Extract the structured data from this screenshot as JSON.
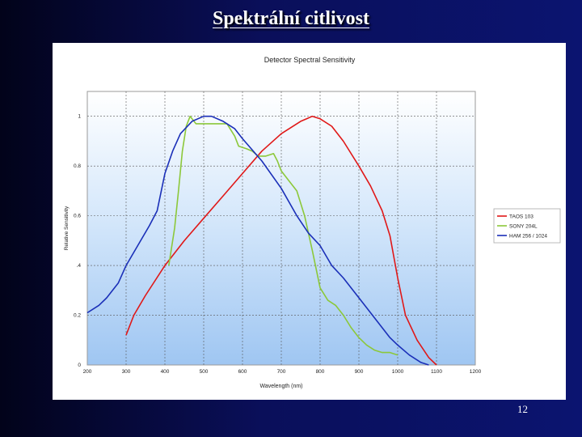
{
  "slide": {
    "title": "Spektrální citlivost",
    "page_number": "12"
  },
  "chart_data": {
    "type": "line",
    "title": "Detector Spectral Sensitivity",
    "xlabel": "Wavelength (nm)",
    "ylabel": "Relative Sensitivity",
    "xlim": [
      200,
      1200
    ],
    "ylim": [
      0,
      1.1
    ],
    "xticks": [
      200,
      300,
      400,
      500,
      600,
      700,
      800,
      900,
      1000,
      1100,
      1200
    ],
    "yticks": [
      0,
      0.2,
      0.4,
      0.6,
      0.8,
      1.0
    ],
    "ytick_labels": [
      "0",
      "0.2",
      ".4",
      "0.6",
      "0.8",
      "1"
    ],
    "grid": true,
    "legend_position": "right",
    "series": [
      {
        "name": "TAOS 103",
        "color": "#e01818",
        "points": [
          [
            300,
            0.12
          ],
          [
            320,
            0.2
          ],
          [
            350,
            0.28
          ],
          [
            400,
            0.4
          ],
          [
            450,
            0.5
          ],
          [
            500,
            0.59
          ],
          [
            550,
            0.68
          ],
          [
            600,
            0.77
          ],
          [
            650,
            0.86
          ],
          [
            700,
            0.93
          ],
          [
            750,
            0.98
          ],
          [
            780,
            1.0
          ],
          [
            800,
            0.99
          ],
          [
            830,
            0.96
          ],
          [
            860,
            0.9
          ],
          [
            900,
            0.8
          ],
          [
            930,
            0.72
          ],
          [
            960,
            0.62
          ],
          [
            980,
            0.52
          ],
          [
            1000,
            0.35
          ],
          [
            1020,
            0.2
          ],
          [
            1050,
            0.1
          ],
          [
            1080,
            0.03
          ],
          [
            1100,
            0.0
          ]
        ]
      },
      {
        "name": "SONY 204L",
        "color": "#8cc83a",
        "points": [
          [
            410,
            0.4
          ],
          [
            425,
            0.55
          ],
          [
            435,
            0.7
          ],
          [
            445,
            0.86
          ],
          [
            455,
            0.96
          ],
          [
            465,
            1.0
          ],
          [
            480,
            0.97
          ],
          [
            500,
            0.97
          ],
          [
            560,
            0.97
          ],
          [
            580,
            0.92
          ],
          [
            590,
            0.88
          ],
          [
            610,
            0.87
          ],
          [
            625,
            0.86
          ],
          [
            640,
            0.84
          ],
          [
            660,
            0.84
          ],
          [
            680,
            0.85
          ],
          [
            690,
            0.82
          ],
          [
            700,
            0.78
          ],
          [
            720,
            0.74
          ],
          [
            740,
            0.7
          ],
          [
            760,
            0.6
          ],
          [
            780,
            0.46
          ],
          [
            800,
            0.31
          ],
          [
            820,
            0.26
          ],
          [
            840,
            0.24
          ],
          [
            860,
            0.2
          ],
          [
            880,
            0.15
          ],
          [
            900,
            0.11
          ],
          [
            920,
            0.08
          ],
          [
            940,
            0.06
          ],
          [
            960,
            0.05
          ],
          [
            980,
            0.05
          ],
          [
            1000,
            0.04
          ]
        ]
      },
      {
        "name": "HAM 256 / 1024",
        "color": "#1a2fb8",
        "points": [
          [
            200,
            0.21
          ],
          [
            230,
            0.24
          ],
          [
            250,
            0.27
          ],
          [
            280,
            0.33
          ],
          [
            300,
            0.4
          ],
          [
            330,
            0.48
          ],
          [
            360,
            0.56
          ],
          [
            380,
            0.62
          ],
          [
            400,
            0.77
          ],
          [
            420,
            0.86
          ],
          [
            440,
            0.93
          ],
          [
            470,
            0.98
          ],
          [
            500,
            1.0
          ],
          [
            520,
            1.0
          ],
          [
            550,
            0.98
          ],
          [
            580,
            0.95
          ],
          [
            600,
            0.91
          ],
          [
            650,
            0.82
          ],
          [
            700,
            0.71
          ],
          [
            740,
            0.6
          ],
          [
            770,
            0.53
          ],
          [
            800,
            0.48
          ],
          [
            830,
            0.4
          ],
          [
            860,
            0.35
          ],
          [
            900,
            0.27
          ],
          [
            940,
            0.19
          ],
          [
            980,
            0.11
          ],
          [
            1000,
            0.08
          ],
          [
            1030,
            0.04
          ],
          [
            1060,
            0.01
          ],
          [
            1080,
            0.0
          ]
        ]
      }
    ]
  }
}
